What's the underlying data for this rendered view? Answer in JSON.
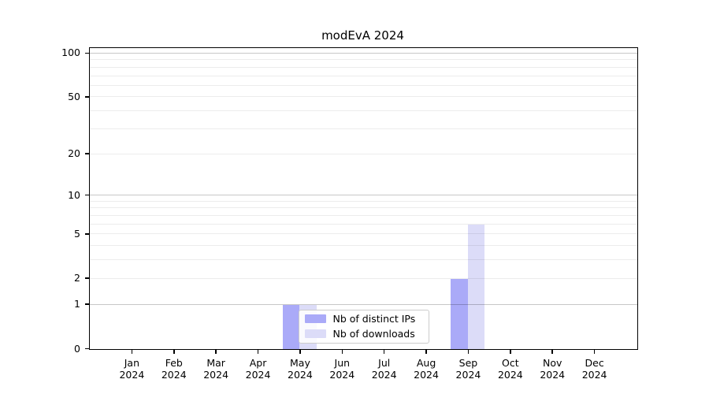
{
  "chart_data": {
    "type": "bar",
    "title": "modEvA 2024",
    "categories": [
      "Jan 2024",
      "Feb 2024",
      "Mar 2024",
      "Apr 2024",
      "May 2024",
      "Jun 2024",
      "Jul 2024",
      "Aug 2024",
      "Sep 2024",
      "Oct 2024",
      "Nov 2024",
      "Dec 2024"
    ],
    "category_months": [
      "Jan",
      "Feb",
      "Mar",
      "Apr",
      "May",
      "Jun",
      "Jul",
      "Aug",
      "Sep",
      "Oct",
      "Nov",
      "Dec"
    ],
    "category_year": "2024",
    "series": [
      {
        "name": "Nb of distinct IPs",
        "color": "#aaaaf8",
        "values": [
          0,
          0,
          0,
          0,
          1,
          0,
          0,
          0,
          2,
          0,
          0,
          0
        ]
      },
      {
        "name": "Nb of downloads",
        "color": "#dcdcf8",
        "values": [
          0,
          0,
          0,
          0,
          1,
          0,
          0,
          0,
          6,
          0,
          0,
          0
        ]
      }
    ],
    "xlabel": "",
    "ylabel": "",
    "yscale": "log1p",
    "ylim": [
      0,
      111
    ],
    "yticks": [
      0,
      1,
      2,
      5,
      10,
      20,
      50,
      100
    ],
    "major_gridlines": [
      1,
      10,
      100
    ],
    "minor_gridlines": [
      2,
      3,
      4,
      5,
      6,
      7,
      8,
      9,
      20,
      30,
      40,
      50,
      60,
      70,
      80,
      90
    ],
    "grid": "on",
    "legend_position": "inside-bottom-center",
    "colors": {
      "background": "#ffffff",
      "spine": "#000000",
      "major_grid": "#c7c7c7",
      "minor_grid": "#ececec",
      "legend_border": "#cccccc"
    }
  }
}
